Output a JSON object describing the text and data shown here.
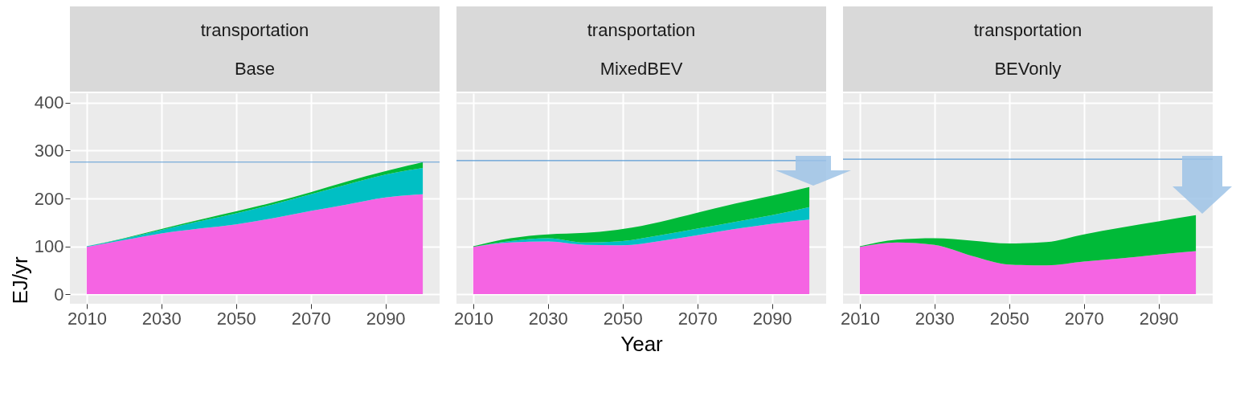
{
  "chart_data": [
    {
      "type": "area",
      "title": "transportation",
      "subtitle": "Base",
      "ylabel": "EJ/yr",
      "stacked": true,
      "grid": true,
      "xlim": [
        2005.5,
        2104.5
      ],
      "xticks": [
        2010,
        2030,
        2050,
        2070,
        2090
      ],
      "ylim": [
        -20,
        420
      ],
      "yticks": [
        0,
        100,
        200,
        300,
        400
      ],
      "x": [
        2010,
        2020,
        2030,
        2040,
        2050,
        2060,
        2070,
        2080,
        2090,
        2100
      ],
      "series": [
        {
          "color": "#f564e3",
          "values": [
            99,
            113,
            127,
            137,
            146,
            159,
            174,
            188,
            202,
            209
          ]
        },
        {
          "color": "#00bfc4",
          "values": [
            1,
            3,
            7,
            15,
            23,
            29,
            35,
            42,
            48,
            55
          ]
        },
        {
          "color": "#00ba38",
          "values": [
            0,
            1,
            2,
            3,
            4,
            4,
            4,
            6,
            7,
            12
          ]
        }
      ],
      "ref_lines": [
        {
          "axis": "y",
          "value": 276,
          "color": "#5b9bd5"
        }
      ]
    },
    {
      "type": "area",
      "title": "transportation",
      "subtitle": "MixedBEV",
      "xlabel": "Year",
      "stacked": true,
      "grid": true,
      "tick_labels": "x",
      "xlim": [
        2005.5,
        2104.5
      ],
      "xticks": [
        2010,
        2030,
        2050,
        2070,
        2090
      ],
      "ylim": [
        -20,
        420
      ],
      "yticks": [
        0,
        100,
        200,
        300,
        400
      ],
      "x": [
        2010,
        2020,
        2030,
        2040,
        2050,
        2060,
        2070,
        2080,
        2090,
        2100
      ],
      "series": [
        {
          "color": "#f564e3",
          "values": [
            99,
            108,
            110,
            103,
            102,
            111,
            123,
            136,
            147,
            156
          ]
        },
        {
          "color": "#00bfc4",
          "values": [
            0,
            3,
            7,
            5,
            9,
            12,
            14,
            15,
            18,
            26
          ]
        },
        {
          "color": "#00ba38",
          "values": [
            1,
            6,
            8,
            20,
            25,
            28,
            33,
            38,
            41,
            42
          ]
        }
      ],
      "ref_lines": [
        {
          "axis": "y",
          "value": 279,
          "color": "#5b9bd5"
        }
      ]
    },
    {
      "type": "area",
      "title": "transportation",
      "subtitle": "BEVonly",
      "stacked": true,
      "grid": true,
      "tick_labels": "x",
      "xlim": [
        2005.5,
        2104.5
      ],
      "xticks": [
        2010,
        2030,
        2050,
        2070,
        2090
      ],
      "ylim": [
        -20,
        420
      ],
      "yticks": [
        0,
        100,
        200,
        300,
        400
      ],
      "x": [
        2010,
        2020,
        2030,
        2040,
        2050,
        2060,
        2070,
        2080,
        2090,
        2100
      ],
      "series": [
        {
          "color": "#f564e3",
          "values": [
            99,
            108,
            103,
            80,
            62,
            60,
            68,
            75,
            83,
            90
          ]
        },
        {
          "color": "#00ba38",
          "values": [
            1,
            6,
            14,
            32,
            44,
            49,
            57,
            64,
            69,
            75
          ]
        }
      ],
      "ref_lines": [
        {
          "axis": "y",
          "value": 282,
          "color": "#5b9bd5"
        }
      ]
    }
  ]
}
